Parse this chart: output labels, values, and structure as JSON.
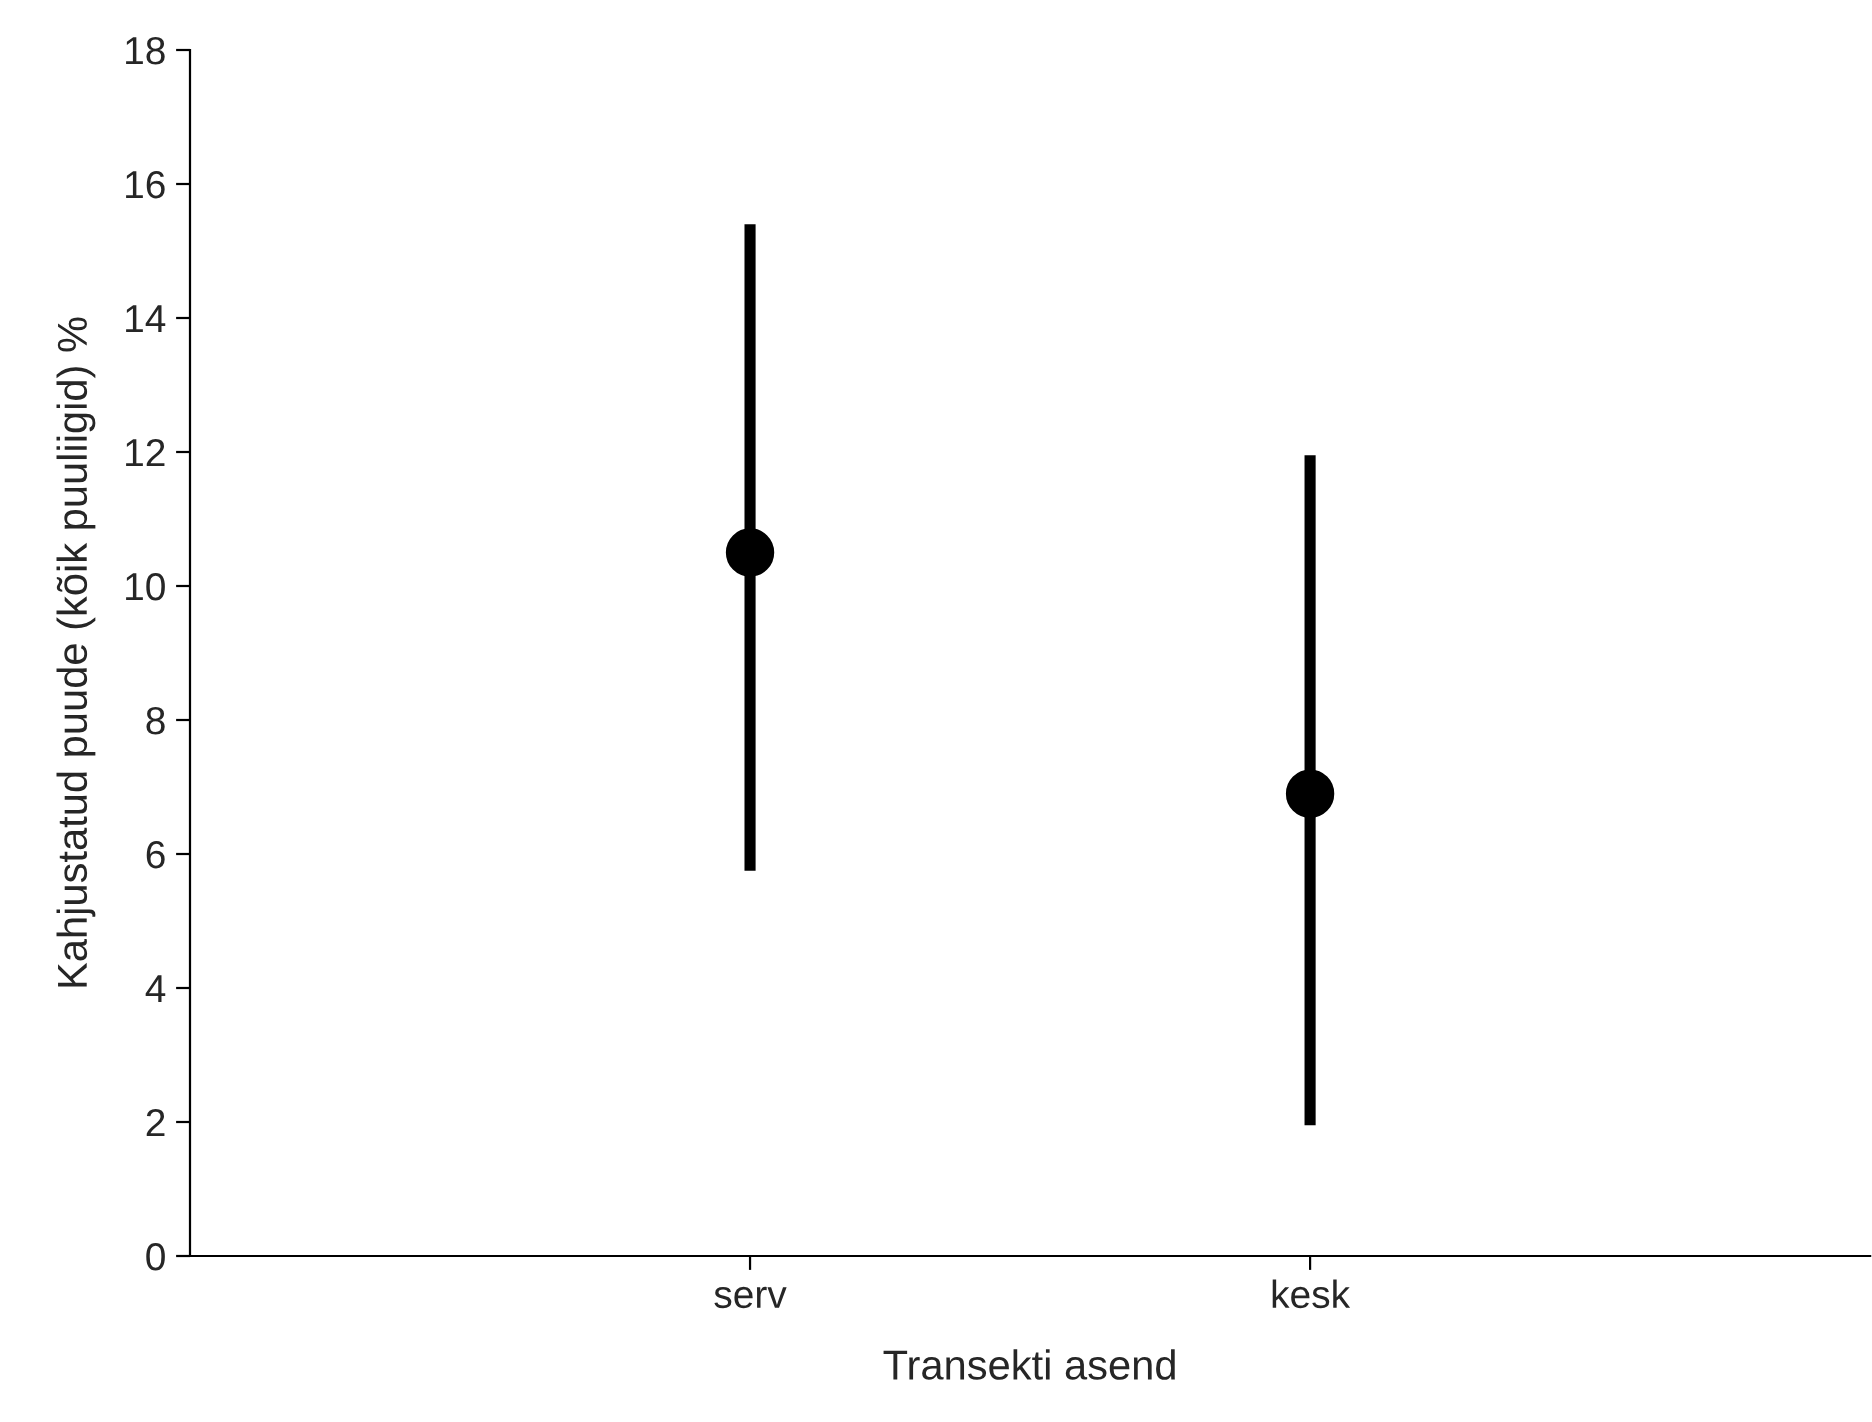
{
  "chart_data": {
    "type": "scatter",
    "categories": [
      "serv",
      "kesk"
    ],
    "values": [
      10.5,
      6.9
    ],
    "errors": [
      [
        5.75,
        15.4
      ],
      [
        1.95,
        11.95
      ]
    ],
    "color": "#000000",
    "marker": "circle",
    "xlabel": "Transekti asend",
    "ylabel": "Kahjustatud puude (kõik puuliigid) %",
    "ylim": [
      0,
      18
    ],
    "yticks": [
      0,
      2,
      4,
      6,
      8,
      10,
      12,
      14,
      16,
      18
    ],
    "grid": false,
    "legend": false
  }
}
